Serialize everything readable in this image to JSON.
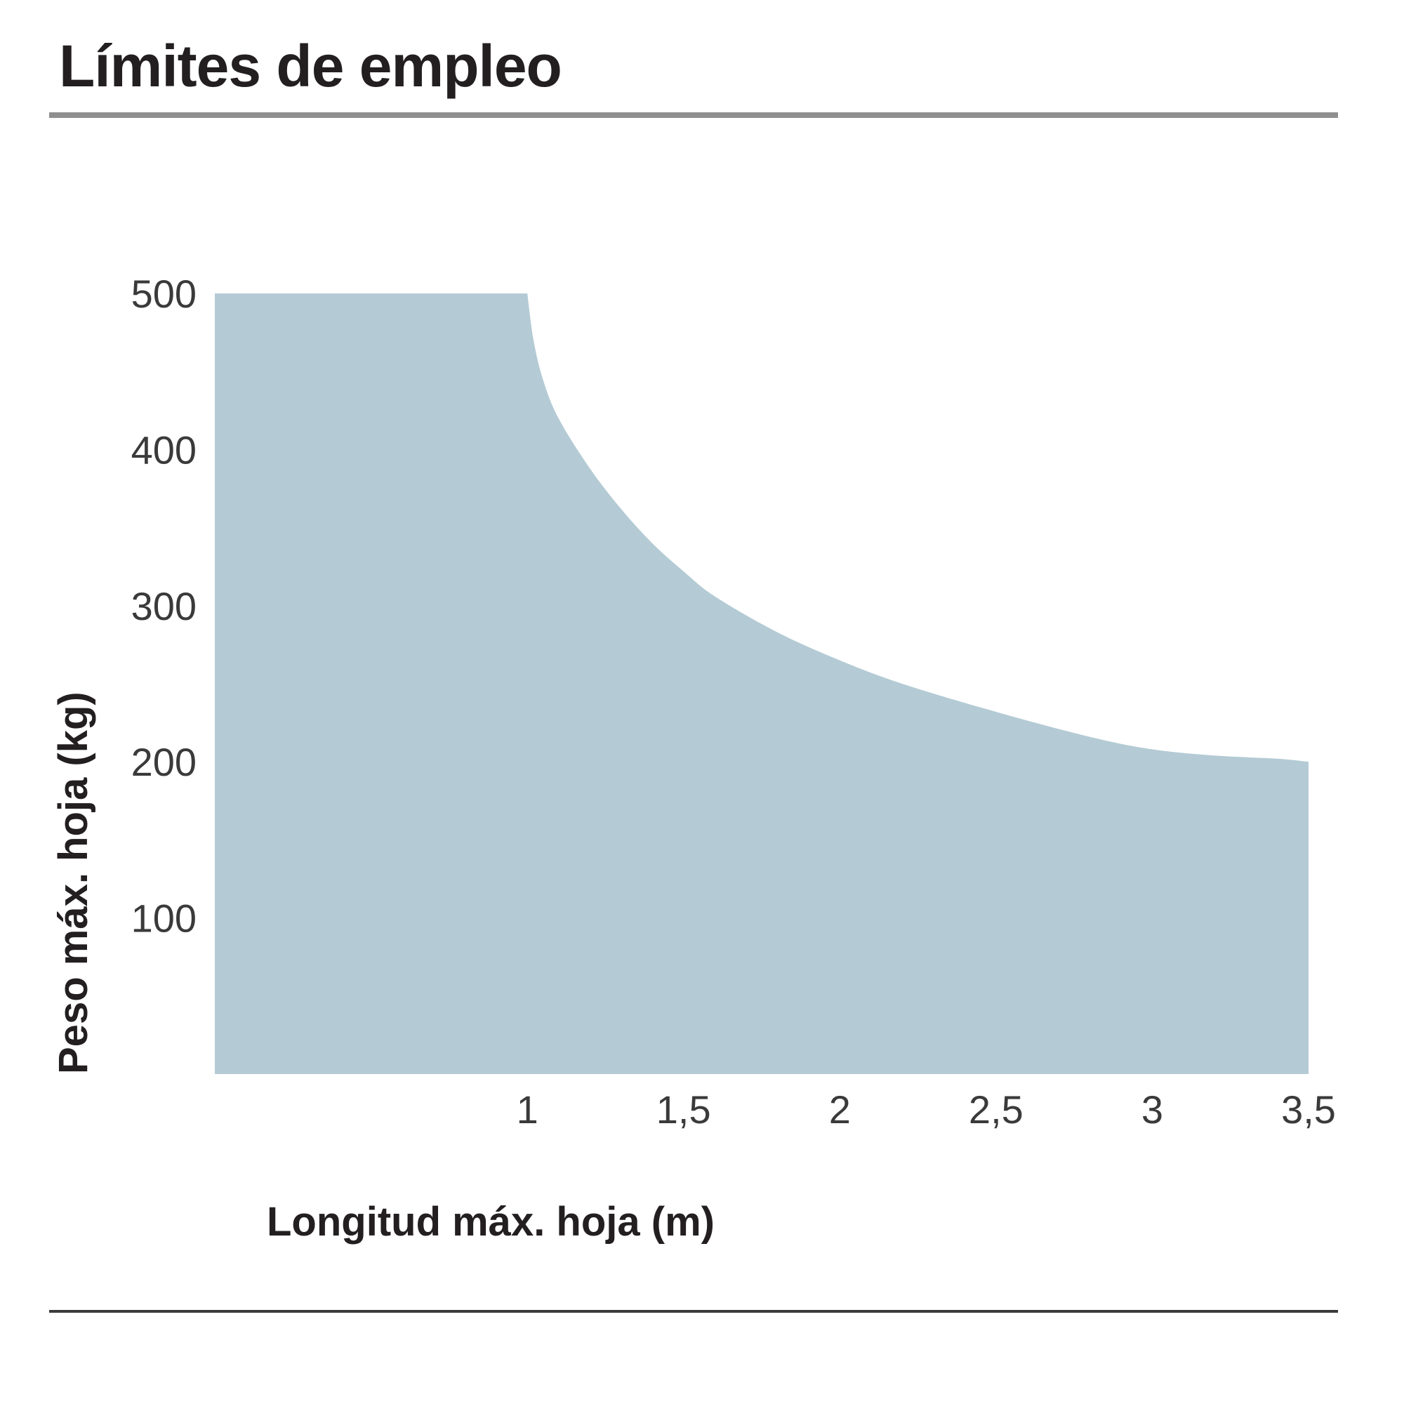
{
  "page": {
    "title": "Límites de empleo"
  },
  "chart_data": {
    "type": "area",
    "title": "Límites de empleo",
    "xlabel": "Longitud máx. hoja (m)",
    "ylabel": "Peso máx. hoja (kg)",
    "xlim": [
      0,
      3.5
    ],
    "ylim": [
      0,
      500
    ],
    "x_ticks": [
      {
        "value": 1,
        "label": "1"
      },
      {
        "value": 1.5,
        "label": "1,5"
      },
      {
        "value": 2,
        "label": "2"
      },
      {
        "value": 2.5,
        "label": "2,5"
      },
      {
        "value": 3,
        "label": "3"
      },
      {
        "value": 3.5,
        "label": "3,5"
      }
    ],
    "y_ticks": [
      {
        "value": 100,
        "label": "100"
      },
      {
        "value": 200,
        "label": "200"
      },
      {
        "value": 300,
        "label": "300"
      },
      {
        "value": 400,
        "label": "400"
      },
      {
        "value": 500,
        "label": "500"
      }
    ],
    "grid": false,
    "fill_color": "#b4cbd5",
    "series": [
      {
        "x": [
          0,
          1,
          1.02,
          1.05,
          1.1,
          1.2,
          1.3,
          1.4,
          1.5,
          1.6,
          1.8,
          2.0,
          2.2,
          2.5,
          2.8,
          3.0,
          3.2,
          3.4,
          3.5
        ],
        "y": [
          500,
          500,
          470,
          445,
          420,
          388,
          362,
          340,
          322,
          306,
          283,
          265,
          250,
          232,
          216,
          208,
          204,
          202,
          200
        ]
      }
    ]
  }
}
